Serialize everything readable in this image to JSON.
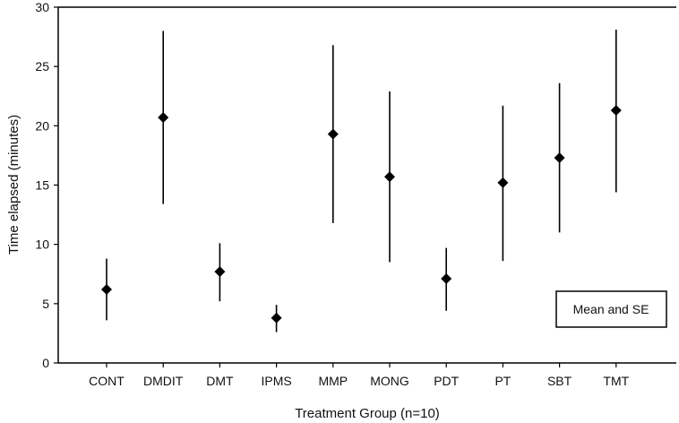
{
  "chart_data": {
    "type": "scatter",
    "title": "",
    "xlabel": "Treatment Group (n=10)",
    "ylabel": "Time elapsed (minutes)",
    "ylim": [
      0,
      30
    ],
    "yticks": [
      "0",
      "5",
      "10",
      "15",
      "20",
      "25",
      "30"
    ],
    "grid": false,
    "legend": {
      "text": "Mean and SE",
      "placement": "lower-right"
    },
    "categories": [
      "CONT",
      "DMDIT",
      "DMT",
      "IPMS",
      "MMP",
      "MONG",
      "PDT",
      "PT",
      "SBT",
      "TMT"
    ],
    "series": [
      {
        "mean": [
          6.2,
          20.7,
          7.7,
          3.8,
          19.3,
          15.7,
          7.1,
          15.2,
          17.3,
          21.3
        ],
        "lower": [
          3.6,
          13.4,
          5.2,
          2.6,
          11.8,
          8.5,
          4.4,
          8.6,
          11.0,
          14.4
        ],
        "upper": [
          8.8,
          28.0,
          10.1,
          4.9,
          26.8,
          22.9,
          9.7,
          21.7,
          23.6,
          28.1
        ]
      }
    ]
  }
}
